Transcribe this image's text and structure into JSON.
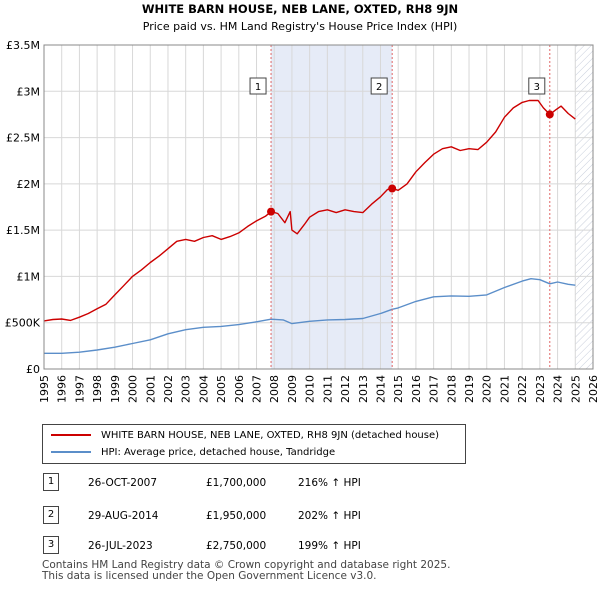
{
  "chart_data": {
    "type": "line",
    "title": "WHITE BARN HOUSE, NEB LANE, OXTED, RH8 9JN",
    "subtitle": "Price paid vs. HM Land Registry's House Price Index (HPI)",
    "xlim": [
      1995,
      2026
    ],
    "ylim": [
      0,
      3500000
    ],
    "x_ticks": [
      "1995",
      "1996",
      "1997",
      "1998",
      "1999",
      "2000",
      "2001",
      "2002",
      "2003",
      "2004",
      "2005",
      "2006",
      "2007",
      "2008",
      "2009",
      "2010",
      "2011",
      "2012",
      "2013",
      "2014",
      "2015",
      "2016",
      "2017",
      "2018",
      "2019",
      "2020",
      "2021",
      "2022",
      "2023",
      "2024",
      "2025",
      "2026"
    ],
    "y_ticks": [
      {
        "value": 0,
        "label": "£0"
      },
      {
        "value": 500000,
        "label": "£500K"
      },
      {
        "value": 1000000,
        "label": "£1M"
      },
      {
        "value": 1500000,
        "label": "£1.5M"
      },
      {
        "value": 2000000,
        "label": "£2M"
      },
      {
        "value": 2500000,
        "label": "£2.5M"
      },
      {
        "value": 3000000,
        "label": "£3M"
      },
      {
        "value": 3500000,
        "label": "£3.5M"
      }
    ],
    "shaded_regions": [
      [
        2007.82,
        2014.66
      ]
    ],
    "hatched_future_from": 2025.0,
    "series": [
      {
        "name": "WHITE BARN HOUSE, NEB LANE, OXTED, RH8 9JN (detached house)",
        "color": "#cc0000",
        "points": [
          [
            1995.0,
            520000
          ],
          [
            1995.5,
            535000
          ],
          [
            1996.0,
            540000
          ],
          [
            1996.5,
            525000
          ],
          [
            1997.0,
            560000
          ],
          [
            1997.5,
            600000
          ],
          [
            1998.0,
            650000
          ],
          [
            1998.5,
            700000
          ],
          [
            1999.0,
            800000
          ],
          [
            1999.5,
            900000
          ],
          [
            2000.0,
            1000000
          ],
          [
            2000.5,
            1070000
          ],
          [
            2001.0,
            1150000
          ],
          [
            2001.5,
            1220000
          ],
          [
            2002.0,
            1300000
          ],
          [
            2002.5,
            1380000
          ],
          [
            2003.0,
            1400000
          ],
          [
            2003.5,
            1380000
          ],
          [
            2004.0,
            1420000
          ],
          [
            2004.5,
            1440000
          ],
          [
            2005.0,
            1400000
          ],
          [
            2005.5,
            1430000
          ],
          [
            2006.0,
            1470000
          ],
          [
            2006.5,
            1540000
          ],
          [
            2007.0,
            1600000
          ],
          [
            2007.5,
            1650000
          ],
          [
            2007.82,
            1700000
          ],
          [
            2008.2,
            1680000
          ],
          [
            2008.6,
            1580000
          ],
          [
            2008.9,
            1700000
          ],
          [
            2009.0,
            1500000
          ],
          [
            2009.3,
            1460000
          ],
          [
            2009.7,
            1560000
          ],
          [
            2010.0,
            1640000
          ],
          [
            2010.5,
            1700000
          ],
          [
            2011.0,
            1720000
          ],
          [
            2011.5,
            1690000
          ],
          [
            2012.0,
            1720000
          ],
          [
            2012.5,
            1700000
          ],
          [
            2013.0,
            1690000
          ],
          [
            2013.5,
            1780000
          ],
          [
            2014.0,
            1860000
          ],
          [
            2014.4,
            1940000
          ],
          [
            2014.66,
            1950000
          ],
          [
            2015.0,
            1930000
          ],
          [
            2015.5,
            2000000
          ],
          [
            2016.0,
            2130000
          ],
          [
            2016.5,
            2230000
          ],
          [
            2017.0,
            2320000
          ],
          [
            2017.5,
            2380000
          ],
          [
            2018.0,
            2400000
          ],
          [
            2018.5,
            2360000
          ],
          [
            2019.0,
            2380000
          ],
          [
            2019.5,
            2370000
          ],
          [
            2020.0,
            2450000
          ],
          [
            2020.5,
            2560000
          ],
          [
            2021.0,
            2720000
          ],
          [
            2021.5,
            2820000
          ],
          [
            2022.0,
            2880000
          ],
          [
            2022.4,
            2900000
          ],
          [
            2022.9,
            2900000
          ],
          [
            2023.2,
            2820000
          ],
          [
            2023.56,
            2750000
          ],
          [
            2023.9,
            2800000
          ],
          [
            2024.2,
            2840000
          ],
          [
            2024.6,
            2760000
          ],
          [
            2025.0,
            2700000
          ]
        ]
      },
      {
        "name": "HPI: Average price, detached house, Tandridge",
        "color": "#5b8ec9",
        "points": [
          [
            1995.0,
            170000
          ],
          [
            1996.0,
            170000
          ],
          [
            1997.0,
            182000
          ],
          [
            1998.0,
            205000
          ],
          [
            1999.0,
            235000
          ],
          [
            2000.0,
            275000
          ],
          [
            2001.0,
            315000
          ],
          [
            2002.0,
            380000
          ],
          [
            2003.0,
            425000
          ],
          [
            2004.0,
            450000
          ],
          [
            2005.0,
            460000
          ],
          [
            2006.0,
            480000
          ],
          [
            2007.0,
            510000
          ],
          [
            2007.82,
            538000
          ],
          [
            2008.5,
            530000
          ],
          [
            2009.0,
            490000
          ],
          [
            2010.0,
            515000
          ],
          [
            2011.0,
            530000
          ],
          [
            2012.0,
            535000
          ],
          [
            2013.0,
            545000
          ],
          [
            2014.0,
            600000
          ],
          [
            2014.66,
            645000
          ],
          [
            2015.0,
            660000
          ],
          [
            2016.0,
            730000
          ],
          [
            2017.0,
            780000
          ],
          [
            2018.0,
            790000
          ],
          [
            2019.0,
            785000
          ],
          [
            2020.0,
            800000
          ],
          [
            2021.0,
            880000
          ],
          [
            2022.0,
            950000
          ],
          [
            2022.5,
            975000
          ],
          [
            2023.0,
            965000
          ],
          [
            2023.56,
            920000
          ],
          [
            2024.0,
            940000
          ],
          [
            2024.6,
            915000
          ],
          [
            2025.0,
            905000
          ]
        ]
      }
    ],
    "markers": [
      {
        "label": "1",
        "x": 2007.82,
        "value": 1700000
      },
      {
        "label": "2",
        "x": 2014.66,
        "value": 1950000
      },
      {
        "label": "3",
        "x": 2023.56,
        "value": 2750000
      }
    ]
  },
  "transactions": [
    {
      "num": "1",
      "date": "26-OCT-2007",
      "price": "£1,700,000",
      "hpi": "216% ↑ HPI"
    },
    {
      "num": "2",
      "date": "29-AUG-2014",
      "price": "£1,950,000",
      "hpi": "202% ↑ HPI"
    },
    {
      "num": "3",
      "date": "26-JUL-2023",
      "price": "£2,750,000",
      "hpi": "199% ↑ HPI"
    }
  ],
  "footer": {
    "line1": "Contains HM Land Registry data © Crown copyright and database right 2025.",
    "line2": "This data is licensed under the Open Government Licence v3.0."
  }
}
